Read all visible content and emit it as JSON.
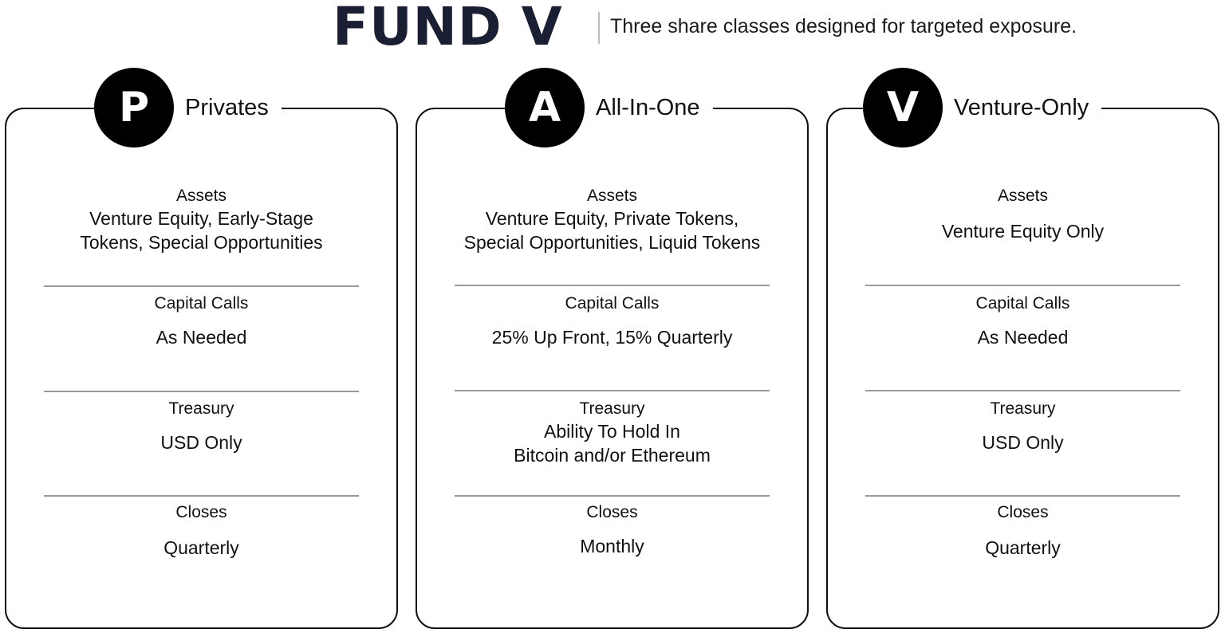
{
  "header": {
    "title": "FUND V",
    "tagline": "Three share classes designed for targeted exposure."
  },
  "cards": [
    {
      "letter": "P",
      "name": "Privates",
      "assets_label": "Assets",
      "assets_line1": "Venture Equity, Early-Stage",
      "assets_line2": "Tokens, Special Opportunities",
      "capital_label": "Capital Calls",
      "capital_value": "As Needed",
      "treasury_label": "Treasury",
      "treasury_line1": "USD Only",
      "treasury_line2": "",
      "closes_label": "Closes",
      "closes_value": "Quarterly"
    },
    {
      "letter": "A",
      "name": "All-In-One",
      "assets_label": "Assets",
      "assets_line1": "Venture Equity, Private Tokens,",
      "assets_line2": "Special Opportunities, Liquid Tokens",
      "capital_label": "Capital Calls",
      "capital_value": "25% Up Front, 15% Quarterly",
      "treasury_label": "Treasury",
      "treasury_line1": "Ability To Hold In",
      "treasury_line2": "Bitcoin and/or Ethereum",
      "closes_label": "Closes",
      "closes_value": "Monthly"
    },
    {
      "letter": "V",
      "name": "Venture-Only",
      "assets_label": "Assets",
      "assets_line1": "Venture Equity Only",
      "assets_line2": "",
      "capital_label": "Capital Calls",
      "capital_value": "As Needed",
      "treasury_label": "Treasury",
      "treasury_line1": "USD Only",
      "treasury_line2": "",
      "closes_label": "Closes",
      "closes_value": "Quarterly"
    }
  ]
}
